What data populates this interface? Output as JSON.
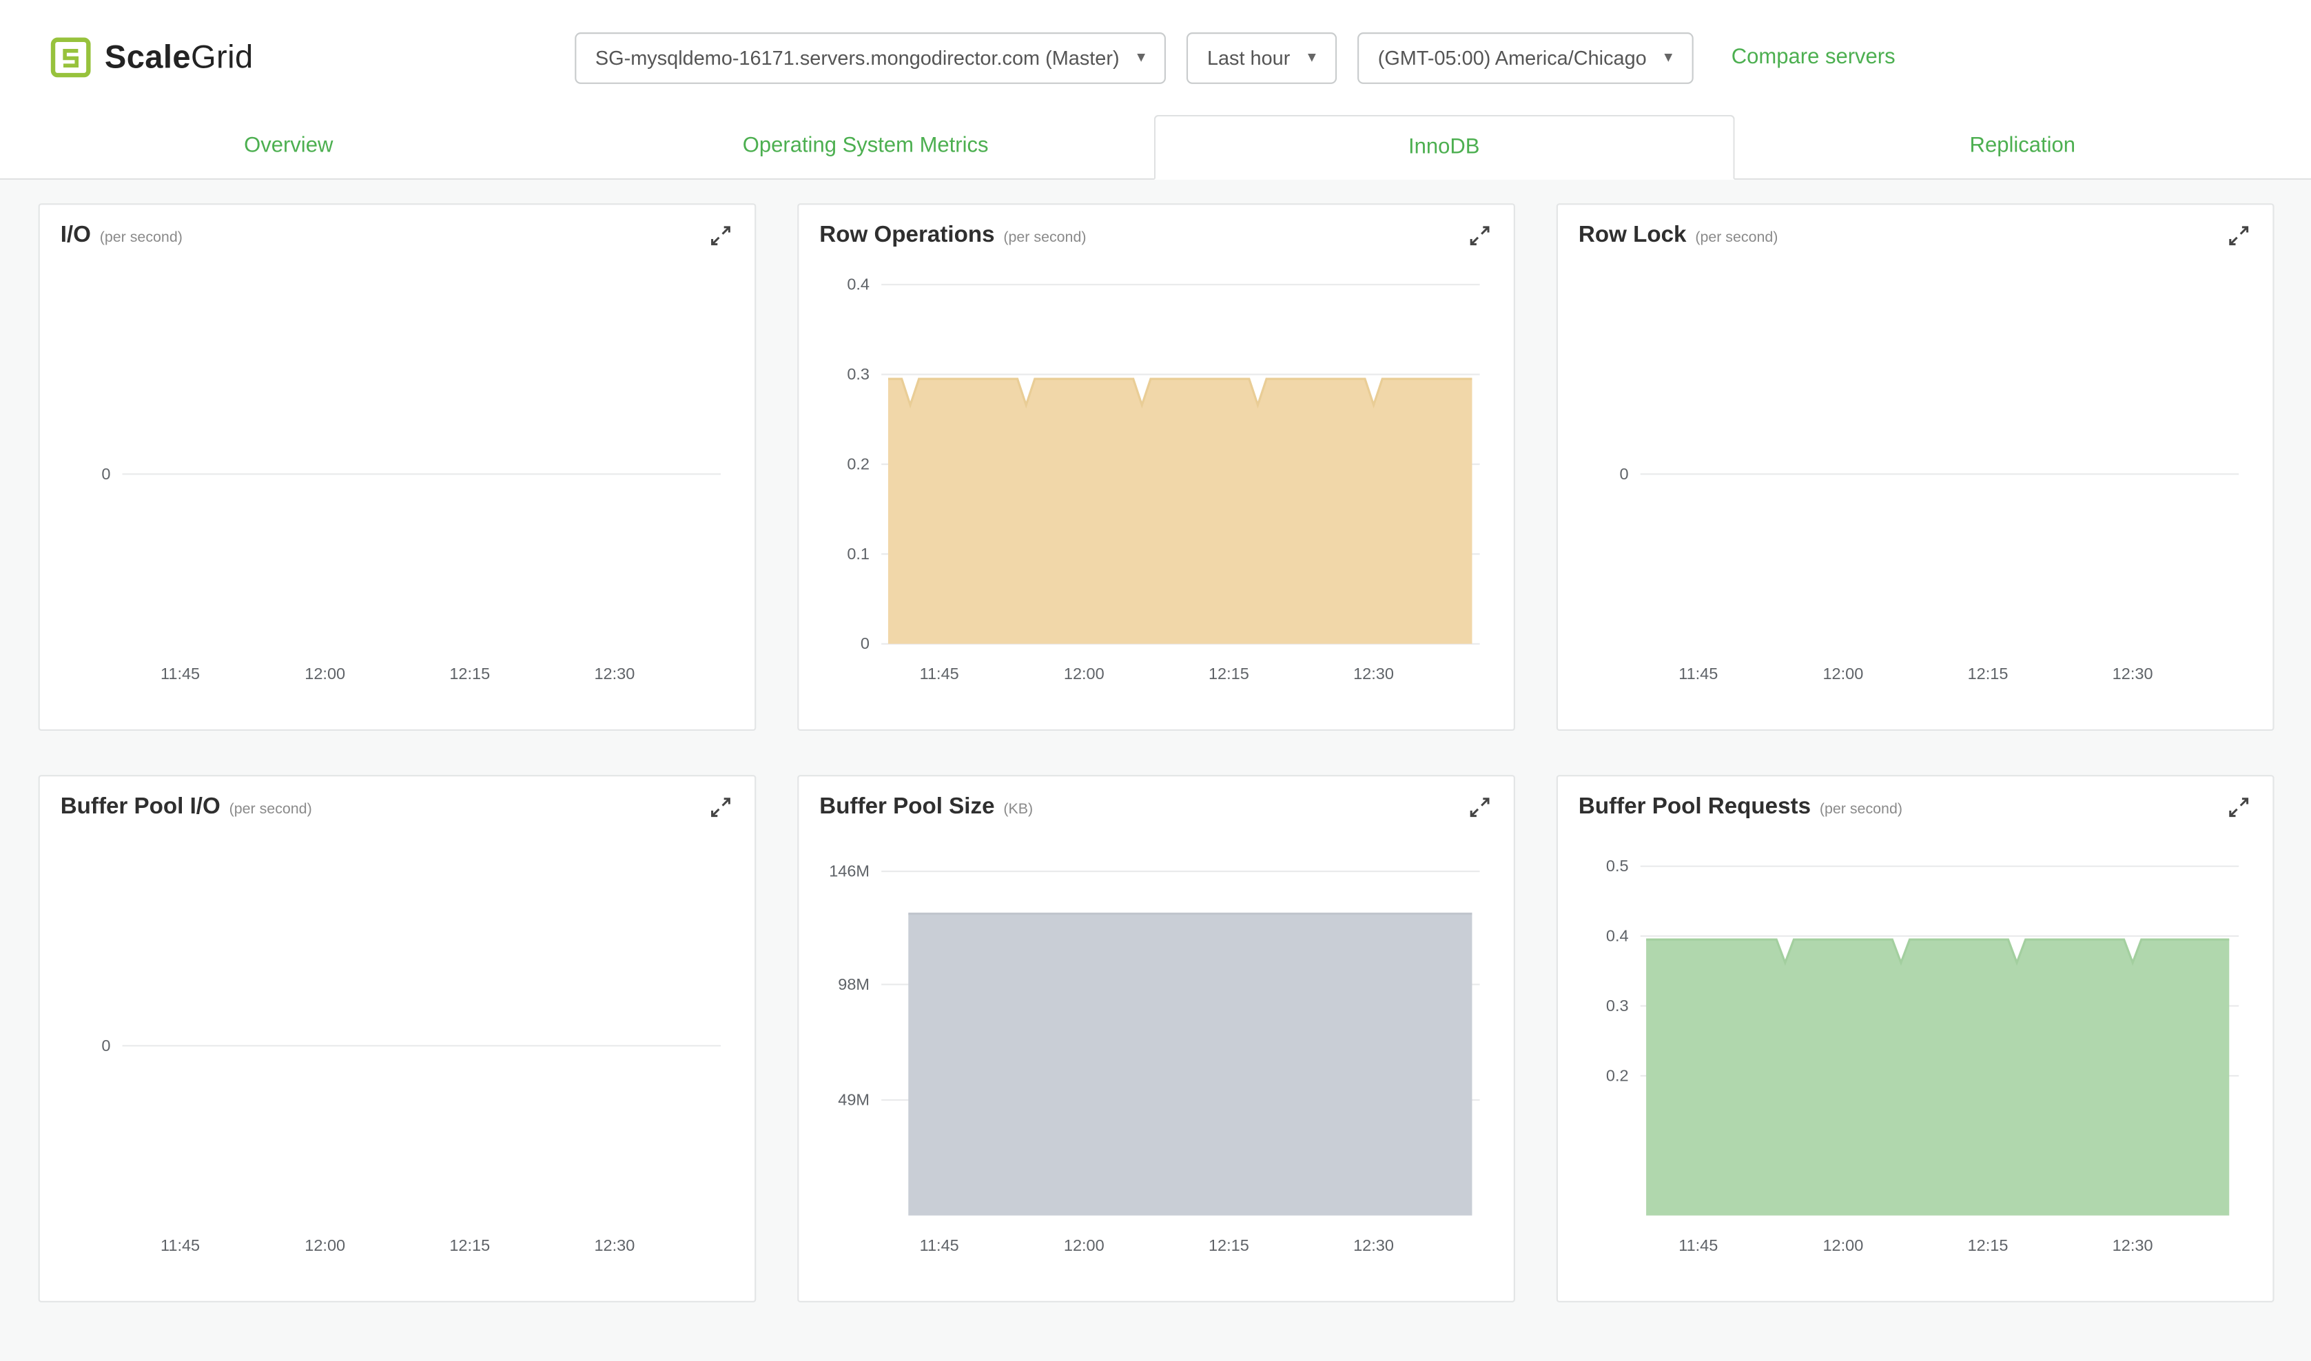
{
  "colors": {
    "accent": "#4caf50",
    "logo_green": "#97c23c",
    "grid_line": "#e9eaeb"
  },
  "icons": {
    "caret_down": "▾"
  },
  "header": {
    "logo_scale": "Scale",
    "logo_grid": "Grid",
    "server_selector": "SG-mysqldemo-16171.servers.mongodirector.com (Master)",
    "time_range": "Last hour",
    "timezone": "(GMT-05:00) America/Chicago",
    "compare_link": "Compare servers"
  },
  "tabs": [
    {
      "label": "Overview",
      "active": false
    },
    {
      "label": "Operating System Metrics",
      "active": false
    },
    {
      "label": "InnoDB",
      "active": true
    },
    {
      "label": "Replication",
      "active": false
    }
  ],
  "chart_data": [
    {
      "type": "area",
      "title": "I/O",
      "unit": "(per second)",
      "ylim": [
        -0.45,
        0.55
      ],
      "yticks": [
        {
          "v": 0,
          "label": "0"
        }
      ],
      "xlim": [
        0,
        62
      ],
      "xticks": [
        {
          "v": 6,
          "label": "11:45"
        },
        {
          "v": 21,
          "label": "12:00"
        },
        {
          "v": 36,
          "label": "12:15"
        },
        {
          "v": 51,
          "label": "12:30"
        }
      ],
      "series": []
    },
    {
      "type": "area",
      "title": "Row Operations",
      "unit": "(per second)",
      "ylim": [
        0,
        0.42
      ],
      "yticks": [
        {
          "v": 0.4,
          "label": "0.4"
        },
        {
          "v": 0.3,
          "label": "0.3"
        },
        {
          "v": 0.2,
          "label": "0.2"
        },
        {
          "v": 0.1,
          "label": "0.1"
        },
        {
          "v": 0,
          "label": "0"
        }
      ],
      "xlim": [
        0,
        62
      ],
      "xticks": [
        {
          "v": 6,
          "label": "11:45"
        },
        {
          "v": 21,
          "label": "12:00"
        },
        {
          "v": 36,
          "label": "12:15"
        },
        {
          "v": 51,
          "label": "12:30"
        }
      ],
      "series": [
        {
          "name": "row operations",
          "fill": "#f1d7a9",
          "stroke": "#e9cd96",
          "points": [
            [
              0.7,
              0.295
            ],
            [
              2.1,
              0.295
            ],
            [
              3,
              0.266
            ],
            [
              3.9,
              0.295
            ],
            [
              14.1,
              0.295
            ],
            [
              15,
              0.266
            ],
            [
              15.9,
              0.295
            ],
            [
              26.1,
              0.295
            ],
            [
              27,
              0.266
            ],
            [
              27.9,
              0.295
            ],
            [
              38.1,
              0.295
            ],
            [
              39,
              0.266
            ],
            [
              39.9,
              0.295
            ],
            [
              50.1,
              0.295
            ],
            [
              51,
              0.266
            ],
            [
              51.9,
              0.295
            ],
            [
              61.2,
              0.295
            ]
          ]
        }
      ]
    },
    {
      "type": "area",
      "title": "Row Lock",
      "unit": "(per second)",
      "ylim": [
        -0.45,
        0.55
      ],
      "yticks": [
        {
          "v": 0,
          "label": "0"
        }
      ],
      "xlim": [
        0,
        62
      ],
      "xticks": [
        {
          "v": 6,
          "label": "11:45"
        },
        {
          "v": 21,
          "label": "12:00"
        },
        {
          "v": 36,
          "label": "12:15"
        },
        {
          "v": 51,
          "label": "12:30"
        }
      ],
      "series": []
    },
    {
      "type": "area",
      "title": "Buffer Pool I/O",
      "unit": "(per second)",
      "ylim": [
        -0.45,
        0.55
      ],
      "yticks": [
        {
          "v": 0,
          "label": "0"
        }
      ],
      "xlim": [
        0,
        62
      ],
      "xticks": [
        {
          "v": 6,
          "label": "11:45"
        },
        {
          "v": 21,
          "label": "12:00"
        },
        {
          "v": 36,
          "label": "12:15"
        },
        {
          "v": 51,
          "label": "12:30"
        }
      ],
      "series": []
    },
    {
      "type": "area",
      "title": "Buffer Pool Size",
      "unit": "(KB)",
      "ylim": [
        0,
        160
      ],
      "yticks": [
        {
          "v": 146,
          "label": "146M"
        },
        {
          "v": 98,
          "label": "98M"
        },
        {
          "v": 49,
          "label": "49M"
        }
      ],
      "xlim": [
        0,
        62
      ],
      "xticks": [
        {
          "v": 6,
          "label": "11:45"
        },
        {
          "v": 21,
          "label": "12:00"
        },
        {
          "v": 36,
          "label": "12:15"
        },
        {
          "v": 51,
          "label": "12:30"
        }
      ],
      "series": [
        {
          "name": "buffer pool size",
          "fill": "#c9ced6",
          "stroke": "#c0c5cd",
          "points": [
            [
              2.8,
              128
            ],
            [
              61.2,
              128
            ]
          ]
        }
      ]
    },
    {
      "type": "area",
      "title": "Buffer Pool Requests",
      "unit": "(per second)",
      "ylim": [
        0,
        0.54
      ],
      "yticks": [
        {
          "v": 0.5,
          "label": "0.5"
        },
        {
          "v": 0.4,
          "label": "0.4"
        },
        {
          "v": 0.3,
          "label": "0.3"
        },
        {
          "v": 0.2,
          "label": "0.2"
        }
      ],
      "xlim": [
        0,
        62
      ],
      "xticks": [
        {
          "v": 6,
          "label": "11:45"
        },
        {
          "v": 21,
          "label": "12:00"
        },
        {
          "v": 36,
          "label": "12:15"
        },
        {
          "v": 51,
          "label": "12:30"
        }
      ],
      "series": [
        {
          "name": "buffer pool requests",
          "fill": "#b0d7ad",
          "stroke": "#a3cf9f",
          "points": [
            [
              0.6,
              0.395
            ],
            [
              14.1,
              0.395
            ],
            [
              15,
              0.362
            ],
            [
              15.9,
              0.395
            ],
            [
              26.1,
              0.395
            ],
            [
              27,
              0.362
            ],
            [
              27.9,
              0.395
            ],
            [
              38.1,
              0.395
            ],
            [
              39,
              0.362
            ],
            [
              39.9,
              0.395
            ],
            [
              50.1,
              0.395
            ],
            [
              51,
              0.362
            ],
            [
              51.9,
              0.395
            ],
            [
              61,
              0.395
            ]
          ]
        }
      ]
    }
  ]
}
